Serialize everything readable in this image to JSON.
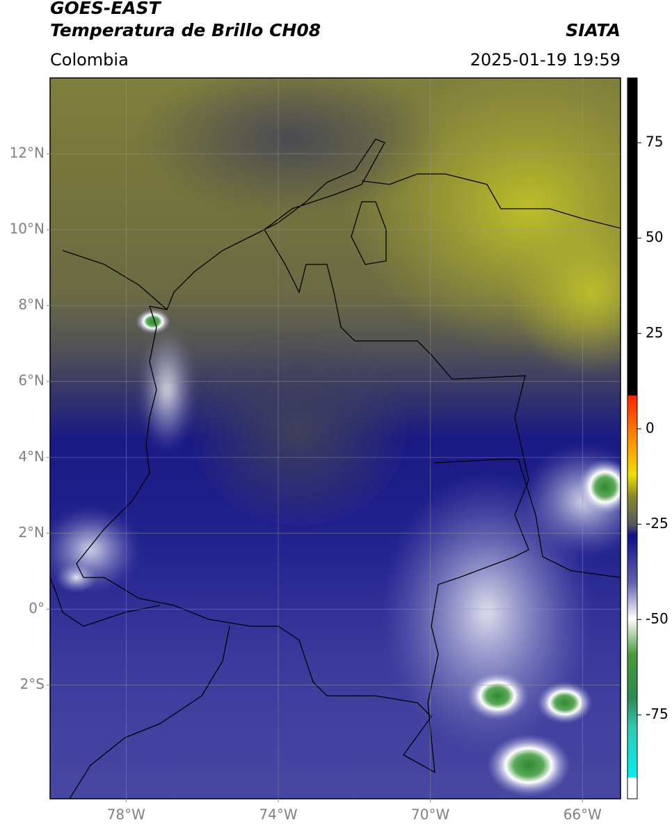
{
  "header": {
    "title": "GOES-EAST",
    "subtitle": "Temperatura de Brillo CH08",
    "region": "Colombia",
    "source": "SIATA",
    "datetime": "2025-01-19 19:59"
  },
  "map": {
    "xlim": [
      -80,
      -65
    ],
    "ylim": [
      -5,
      14
    ],
    "xticks": [
      {
        "value": -78,
        "label": "78°W"
      },
      {
        "value": -74,
        "label": "74°W"
      },
      {
        "value": -70,
        "label": "70°W"
      },
      {
        "value": -66,
        "label": "66°W"
      }
    ],
    "yticks": [
      {
        "value": 12,
        "label": "12°N"
      },
      {
        "value": 10,
        "label": "10°N"
      },
      {
        "value": 8,
        "label": "8°N"
      },
      {
        "value": 6,
        "label": "6°N"
      },
      {
        "value": 4,
        "label": "4°N"
      },
      {
        "value": 2,
        "label": "2°N"
      },
      {
        "value": 0,
        "label": "0°"
      },
      {
        "value": -2,
        "label": "2°S"
      }
    ]
  },
  "colorbar": {
    "clim": [
      -97,
      92
    ],
    "ticks": [
      75,
      50,
      25,
      0,
      -25,
      -50,
      -75
    ]
  }
}
